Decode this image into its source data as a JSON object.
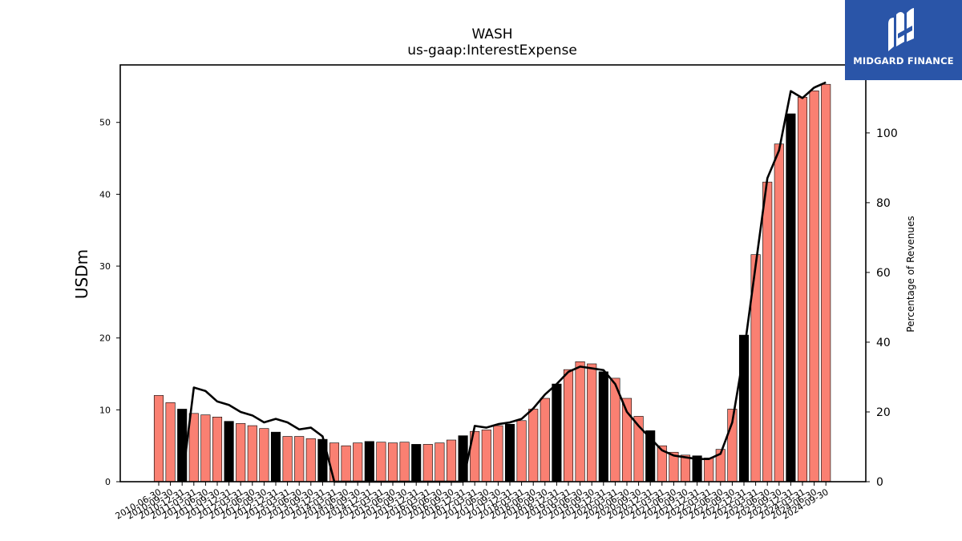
{
  "logo": {
    "text": "MIDGARD FINANCE",
    "icon": "midgard-m-icon"
  },
  "chart_data": {
    "type": "bar",
    "title": "WASH",
    "subtitle": "us-gaap:InterestExpense",
    "ylabel": "USDm",
    "y2label": "Percentage of Revenues",
    "ylim": [
      0,
      58
    ],
    "y2lim": [
      0,
      119.5
    ],
    "yticks": [
      0,
      10,
      20,
      30,
      40,
      50
    ],
    "y2ticks": [
      0,
      20,
      40,
      60,
      80,
      100
    ],
    "colors": {
      "quarter": "#fa8072",
      "annual": "#000000",
      "line": "#000000"
    },
    "categories": [
      "2010-06-30",
      "2010-09-30",
      "2010-12-31",
      "2011-03-31",
      "2011-06-30",
      "2011-09-30",
      "2011-12-31",
      "2012-03-31",
      "2012-06-30",
      "2012-09-30",
      "2012-12-31",
      "2013-03-31",
      "2013-06-30",
      "2013-09-30",
      "2013-12-31",
      "2014-03-31",
      "2014-06-30",
      "2014-09-30",
      "2014-12-31",
      "2015-03-31",
      "2015-06-30",
      "2015-09-30",
      "2015-12-31",
      "2016-03-31",
      "2016-06-30",
      "2016-09-30",
      "2016-12-31",
      "2017-03-31",
      "2017-06-30",
      "2017-09-30",
      "2017-12-31",
      "2018-03-31",
      "2018-06-30",
      "2018-09-30",
      "2018-12-31",
      "2019-03-31",
      "2019-06-30",
      "2019-09-30",
      "2019-12-31",
      "2020-03-31",
      "2020-06-30",
      "2020-09-30",
      "2020-12-31",
      "2021-03-31",
      "2021-06-30",
      "2021-09-30",
      "2021-12-31",
      "2022-03-31",
      "2022-06-30",
      "2022-09-30",
      "2022-12-31",
      "2023-03-31",
      "2023-06-30",
      "2023-09-30",
      "2023-12-31",
      "2024-03-31",
      "2024-06-30",
      "2024-09-30"
    ],
    "series": [
      {
        "values": [
          12.0,
          11.0,
          10.1,
          9.5,
          9.3,
          9.0,
          8.4,
          8.1,
          7.8,
          7.4,
          6.9,
          6.3,
          6.3,
          6.0,
          5.9,
          5.4,
          5.0,
          5.4,
          5.6,
          5.5,
          5.4,
          5.5,
          5.2,
          5.2,
          5.4,
          5.8,
          6.4,
          7.0,
          7.2,
          7.8,
          8.0,
          8.5,
          10.1,
          11.6,
          13.6,
          15.6,
          16.7,
          16.4,
          15.3,
          14.4,
          11.6,
          9.1,
          7.1,
          5.0,
          4.1,
          3.7,
          3.6,
          3.3,
          4.5,
          10.1,
          20.4,
          31.6,
          41.7,
          47.0,
          51.2,
          53.5,
          54.4,
          55.3
        ],
        "annual_flags": [
          0,
          0,
          1,
          0,
          0,
          0,
          1,
          0,
          0,
          0,
          1,
          0,
          0,
          0,
          1,
          0,
          0,
          0,
          1,
          0,
          0,
          0,
          1,
          0,
          0,
          0,
          1,
          0,
          0,
          0,
          1,
          0,
          0,
          0,
          1,
          0,
          0,
          0,
          1,
          0,
          0,
          0,
          1,
          0,
          0,
          0,
          1,
          0,
          0,
          0,
          1,
          0,
          0,
          0,
          1,
          0,
          0,
          0
        ]
      },
      {
        "type": "line",
        "axis": "right",
        "values": [
          null,
          null,
          0,
          27,
          26,
          23,
          22,
          20,
          19,
          17,
          18,
          17,
          15,
          15.5,
          13,
          0,
          0,
          0,
          0,
          0,
          0,
          0,
          0,
          0,
          0,
          0,
          0,
          16,
          15.5,
          16.5,
          17,
          18,
          21,
          25,
          28,
          31.5,
          33,
          32.5,
          32,
          28,
          20,
          16,
          12.5,
          9,
          7.5,
          7,
          6.5,
          6.5,
          8,
          17,
          37,
          62,
          87,
          95,
          112,
          110,
          113,
          114.5
        ]
      }
    ]
  }
}
